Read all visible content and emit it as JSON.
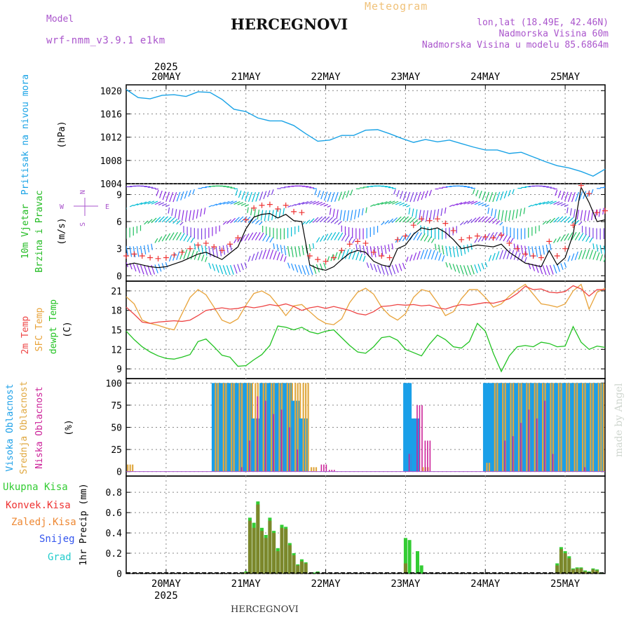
{
  "header": {
    "model_label": "Model",
    "model_name": "wrf-nmm_v3.9.1 e1km",
    "title": "HERCEGNOVI",
    "meteogram": "Meteogram",
    "lonlat": "lon,lat (18.49E, 42.46N)",
    "elevation": "Nadmorska Visina 60m",
    "model_elevation": "Nadmorska Visina u modelu 85.6864m",
    "footer_station": "HERCEGNOVI",
    "credit": "made by Angel"
  },
  "colors": {
    "pressure": "#1aa3e6",
    "wind_label": "#22bb22",
    "temp2m": "#ee4444",
    "sfc": "#e8a33a",
    "dew": "#22c322",
    "cloud_high": "#1a9fe8",
    "cloud_mid": "#e0a840",
    "cloud_low": "#cc2299",
    "precip_total": "#33cc33",
    "precip_conv": "#ee3333",
    "precip_strat": "#ee8833",
    "snow": "#3355ee",
    "hail": "#22cccc",
    "model": "#aa55cc"
  },
  "chart_data": [
    {
      "type": "line",
      "id": "pressure",
      "ylabel": "(hPa)",
      "side_label": "Pritisak na nivou mora",
      "ylim": [
        1004,
        1021
      ],
      "yticks": [
        1004,
        1008,
        1012,
        1016,
        1020
      ],
      "grid": true,
      "x_days": [
        "20MAY",
        "21MAY",
        "22MAY",
        "23MAY",
        "24MAY",
        "25MAY"
      ],
      "x_year": "2025",
      "x": [
        -0.5,
        -0.35,
        -0.2,
        -0.05,
        0.1,
        0.25,
        0.4,
        0.55,
        0.7,
        0.85,
        1.0,
        1.15,
        1.3,
        1.45,
        1.6,
        1.75,
        1.9,
        2.05,
        2.2,
        2.35,
        2.5,
        2.65,
        2.8,
        2.95,
        3.1,
        3.25,
        3.4,
        3.55,
        3.7,
        3.85,
        4.0,
        4.15,
        4.3,
        4.45,
        4.6,
        4.75,
        4.9,
        5.05,
        5.2,
        5.35,
        5.5
      ],
      "series": [
        {
          "name": "",
          "values": [
            1020.2,
            1018.8,
            1018.6,
            1019.2,
            1019.3,
            1019.0,
            1019.8,
            1019.7,
            1018.5,
            1016.8,
            1016.4,
            1015.3,
            1014.8,
            1014.8,
            1014.0,
            1012.6,
            1011.3,
            1011.5,
            1012.3,
            1012.3,
            1013.2,
            1013.3,
            1012.6,
            1011.8,
            1011.1,
            1011.6,
            1011.2,
            1011.5,
            1010.9,
            1010.3,
            1009.8,
            1009.8,
            1009.2,
            1009.4,
            1008.6,
            1007.8,
            1007.1,
            1006.7,
            1006.1,
            1005.3,
            1006.5
          ]
        }
      ]
    },
    {
      "type": "line",
      "id": "wind",
      "ylabel": "(m/s)",
      "side_label_1": "10m Vjetar",
      "side_label_2": "Brzina i Pravac",
      "compass_n": "N",
      "compass_w": "W",
      "compass_e": "E",
      "compass_s": "S",
      "ylim": [
        -0.6,
        10.2
      ],
      "yticks": [
        0,
        3,
        6,
        9
      ],
      "grid": true,
      "x": [
        -0.5,
        -0.4,
        -0.3,
        -0.2,
        -0.1,
        0.0,
        0.1,
        0.2,
        0.3,
        0.4,
        0.5,
        0.6,
        0.7,
        0.8,
        0.9,
        1.0,
        1.1,
        1.2,
        1.3,
        1.4,
        1.5,
        1.6,
        1.7,
        1.8,
        1.9,
        2.0,
        2.1,
        2.2,
        2.3,
        2.4,
        2.5,
        2.6,
        2.7,
        2.8,
        2.9,
        3.0,
        3.1,
        3.2,
        3.3,
        3.4,
        3.5,
        3.6,
        3.7,
        3.8,
        3.9,
        4.0,
        4.1,
        4.2,
        4.3,
        4.4,
        4.5,
        4.6,
        4.7,
        4.8,
        4.9,
        5.0,
        5.1,
        5.2,
        5.3,
        5.4,
        5.5
      ],
      "series": [
        {
          "name": "",
          "values": [
            1.2,
            1.4,
            1.2,
            1.0,
            0.9,
            1.0,
            1.3,
            1.6,
            2.0,
            2.4,
            2.6,
            2.2,
            1.8,
            2.5,
            3.2,
            5.2,
            6.5,
            6.8,
            6.9,
            6.4,
            6.8,
            6.1,
            6.0,
            1.2,
            0.8,
            0.6,
            1.0,
            1.8,
            2.5,
            2.8,
            2.6,
            1.6,
            1.2,
            1.0,
            3.0,
            3.4,
            4.6,
            5.3,
            5.1,
            5.3,
            4.8,
            4.0,
            3.0,
            3.2,
            3.4,
            3.3,
            3.2,
            3.5,
            2.6,
            2.0,
            1.4,
            1.2,
            1.0,
            2.8,
            1.2,
            2.0,
            4.6,
            9.8,
            8.1,
            6.0,
            6.2
          ]
        }
      ]
    },
    {
      "type": "line",
      "id": "temperature",
      "ylabel": "(C)",
      "side_label_1": "2m Temp",
      "side_label_2": "SFC Temp",
      "side_label_3": "dewpt Temp",
      "ylim": [
        7.5,
        22.5
      ],
      "yticks": [
        9,
        12,
        15,
        18,
        21
      ],
      "grid": true,
      "x": [
        -0.5,
        -0.4,
        -0.3,
        -0.2,
        -0.1,
        0.0,
        0.1,
        0.2,
        0.3,
        0.4,
        0.5,
        0.6,
        0.7,
        0.8,
        0.9,
        1.0,
        1.1,
        1.2,
        1.3,
        1.4,
        1.5,
        1.6,
        1.7,
        1.8,
        1.9,
        2.0,
        2.1,
        2.2,
        2.3,
        2.4,
        2.5,
        2.6,
        2.7,
        2.8,
        2.9,
        3.0,
        3.1,
        3.2,
        3.3,
        3.4,
        3.5,
        3.6,
        3.7,
        3.8,
        3.9,
        4.0,
        4.1,
        4.2,
        4.3,
        4.4,
        4.5,
        4.6,
        4.7,
        4.8,
        4.9,
        5.0,
        5.1,
        5.2,
        5.3,
        5.4,
        5.5
      ],
      "series": [
        {
          "name": "",
          "values": [
            18.5,
            17.4,
            16.2,
            16.0,
            16.2,
            16.3,
            16.4,
            16.3,
            16.5,
            17.2,
            18.0,
            18.2,
            18.4,
            18.2,
            18.3,
            18.6,
            18.4,
            18.6,
            18.9,
            18.7,
            19.0,
            18.6,
            18.0,
            18.4,
            18.6,
            18.3,
            18.6,
            18.3,
            18.0,
            17.5,
            17.3,
            17.8,
            18.6,
            18.7,
            18.9,
            18.8,
            18.9,
            18.7,
            18.8,
            18.4,
            18.2,
            18.6,
            18.9,
            18.8,
            19.0,
            19.2,
            19.1,
            19.4,
            19.8,
            20.6,
            21.7,
            21.2,
            21.3,
            20.8,
            20.7,
            20.9,
            21.8,
            21.3,
            20.2,
            21.2,
            21.2
          ]
        },
        {
          "name": "",
          "values": [
            20.1,
            19.0,
            16.5,
            16.0,
            15.7,
            15.3,
            15.0,
            17.5,
            20.0,
            21.2,
            20.4,
            18.5,
            16.5,
            16.0,
            16.7,
            18.8,
            20.6,
            21.0,
            20.3,
            18.8,
            17.2,
            18.7,
            18.9,
            17.8,
            16.7,
            16.0,
            15.8,
            16.7,
            19.2,
            20.8,
            21.4,
            20.5,
            18.5,
            17.2,
            16.5,
            17.5,
            20.0,
            21.2,
            20.9,
            19.2,
            17.2,
            17.8,
            19.8,
            21.2,
            21.2,
            20.0,
            18.5,
            19.0,
            20.2,
            21.2,
            22.0,
            20.5,
            19.0,
            18.8,
            18.5,
            19.0,
            21.0,
            22.0,
            18.2,
            20.8,
            21.4
          ]
        },
        {
          "name": "",
          "values": [
            14.8,
            13.5,
            12.4,
            11.6,
            11.0,
            10.6,
            10.5,
            10.8,
            11.2,
            13.2,
            13.6,
            12.4,
            11.1,
            10.8,
            9.4,
            9.5,
            10.4,
            11.2,
            12.6,
            15.6,
            15.4,
            15.0,
            15.4,
            14.7,
            14.4,
            14.8,
            15.0,
            13.8,
            12.6,
            11.6,
            11.4,
            12.4,
            13.8,
            14.0,
            13.4,
            12.0,
            11.5,
            11.0,
            12.8,
            14.2,
            13.5,
            12.4,
            12.2,
            13.2,
            16.0,
            14.8,
            11.4,
            8.6,
            11.0,
            12.4,
            12.6,
            12.4,
            13.1,
            12.9,
            12.4,
            12.5,
            15.5,
            13.1,
            12.0,
            12.5,
            12.3
          ]
        }
      ]
    },
    {
      "type": "bar",
      "id": "clouds",
      "ylabel": "(%)",
      "side_label_1": "Visoka Oblacnost",
      "side_label_2": "Srednja Oblacnost",
      "side_label_3": "Niska Oblacnost",
      "ylim": [
        -5,
        105
      ],
      "yticks": [
        0,
        25,
        50,
        75,
        100
      ],
      "grid": true,
      "x": [
        -0.45,
        -0.35,
        -0.25,
        -0.15,
        -0.05,
        0.05,
        0.15,
        0.25,
        0.35,
        0.45,
        0.55,
        0.65,
        0.75,
        0.85,
        0.95,
        1.05,
        1.15,
        1.25,
        1.35,
        1.45,
        1.55,
        1.65,
        1.75,
        1.85,
        1.95,
        2.05,
        2.15,
        2.25,
        2.35,
        2.45,
        2.55,
        2.65,
        2.75,
        2.85,
        2.95,
        3.05,
        3.15,
        3.25,
        3.35,
        3.45,
        3.55,
        3.65,
        3.75,
        3.85,
        3.95,
        4.05,
        4.15,
        4.25,
        4.35,
        4.45,
        4.55,
        4.65,
        4.75,
        4.85,
        4.95,
        5.05,
        5.15,
        5.25,
        5.35,
        5.45
      ],
      "series": [
        {
          "name": "",
          "values": [
            0,
            0,
            0,
            0,
            0,
            0,
            0,
            0,
            0,
            0,
            0,
            100,
            100,
            100,
            100,
            100,
            60,
            100,
            100,
            100,
            100,
            80,
            60,
            0,
            0,
            0,
            0,
            0,
            0,
            0,
            0,
            0,
            0,
            0,
            0,
            100,
            60,
            0,
            0,
            0,
            0,
            0,
            0,
            0,
            0,
            100,
            100,
            100,
            100,
            100,
            100,
            100,
            100,
            100,
            100,
            100,
            100,
            100,
            100,
            100
          ]
        },
        {
          "name": "",
          "values": [
            8,
            0,
            0,
            0,
            0,
            0,
            0,
            0,
            0,
            0,
            0,
            100,
            100,
            100,
            100,
            100,
            100,
            100,
            100,
            100,
            100,
            100,
            100,
            5,
            0,
            0,
            0,
            0,
            0,
            0,
            0,
            0,
            0,
            0,
            0,
            0,
            0,
            5,
            0,
            0,
            0,
            0,
            0,
            0,
            0,
            10,
            100,
            100,
            100,
            100,
            100,
            100,
            100,
            100,
            100,
            100,
            100,
            100,
            100,
            100
          ]
        },
        {
          "name": "",
          "values": [
            0,
            0,
            0,
            0,
            0,
            0,
            0,
            0,
            0,
            0,
            0,
            0,
            0,
            0,
            5,
            35,
            85,
            80,
            65,
            70,
            50,
            25,
            0,
            0,
            8,
            2,
            0,
            0,
            0,
            0,
            0,
            0,
            0,
            0,
            0,
            20,
            75,
            35,
            0,
            0,
            0,
            0,
            0,
            0,
            0,
            0,
            0,
            35,
            40,
            55,
            70,
            60,
            80,
            20,
            0,
            0,
            0,
            5,
            0,
            0
          ]
        }
      ]
    },
    {
      "type": "bar",
      "id": "precip",
      "ylabel": "1hr Precip (mm)",
      "side_label_1": "Ukupna Kisa",
      "side_label_2": "Konvek.Kisa",
      "side_label_3": "Zaledj.Kisa",
      "side_label_4": "Snijeg",
      "side_label_5": "Grad",
      "ylim": [
        0,
        0.96
      ],
      "yticks": [
        0,
        0.2,
        0.4,
        0.6,
        0.8
      ],
      "grid": true,
      "x": [
        0.95,
        1.0,
        1.05,
        1.1,
        1.15,
        1.2,
        1.25,
        1.3,
        1.35,
        1.4,
        1.45,
        1.5,
        1.55,
        1.6,
        1.65,
        1.7,
        1.75,
        1.85,
        1.9,
        3.0,
        3.05,
        3.15,
        3.2,
        4.9,
        4.95,
        5.0,
        5.05,
        5.1,
        5.15,
        5.2,
        5.25,
        5.3,
        5.35,
        5.4,
        5.45
      ],
      "series": [
        {
          "name": "",
          "values": [
            0.005,
            0.02,
            0.55,
            0.5,
            0.71,
            0.45,
            0.38,
            0.55,
            0.42,
            0.25,
            0.48,
            0.46,
            0.3,
            0.2,
            0.09,
            0.14,
            0.11,
            0.01,
            0.02,
            0.35,
            0.33,
            0.22,
            0.08,
            0.1,
            0.26,
            0.22,
            0.17,
            0.05,
            0.06,
            0.06,
            0.03,
            0.02,
            0.05,
            0.04,
            0.01
          ]
        },
        {
          "name": "",
          "values": [
            0,
            0.01,
            0.52,
            0.45,
            0.68,
            0.42,
            0.35,
            0.52,
            0.4,
            0.22,
            0.45,
            0.44,
            0.28,
            0.18,
            0.08,
            0.12,
            0.1,
            0,
            0.01,
            0.1,
            0,
            0,
            0,
            0.08,
            0.24,
            0.2,
            0.15,
            0.04,
            0.05,
            0.05,
            0.02,
            0.01,
            0.04,
            0.03,
            0
          ]
        }
      ]
    }
  ]
}
